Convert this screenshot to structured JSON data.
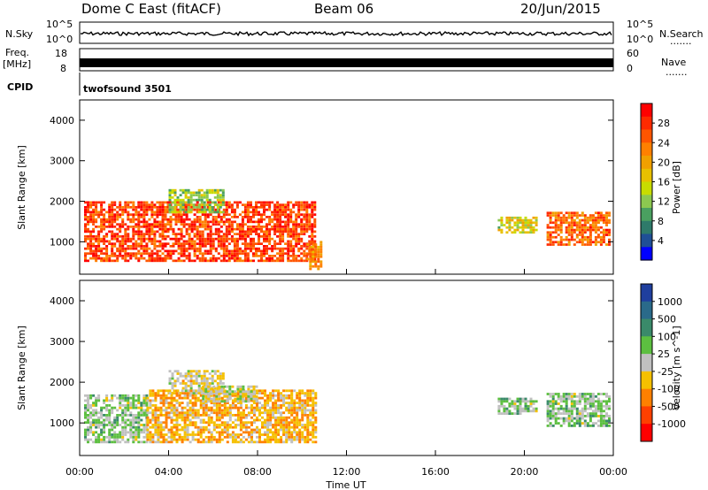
{
  "header": {
    "station": "Dome C East (fitACF)",
    "beam": "Beam 06",
    "date": "20/Jun/2015"
  },
  "status_panels": {
    "nsky_label": "N.Sky",
    "nsky_ticks": [
      "10^5",
      "10^0"
    ],
    "nsearch_label": "N.Search",
    "nsearch_ticks": [
      "10^5",
      "10^0"
    ],
    "freq_label_line1": "Freq.",
    "freq_label_line2": "[MHz]",
    "freq_ticks": [
      "18",
      "8"
    ],
    "nave_label": "Nave",
    "nave_ticks": [
      "60",
      "0"
    ],
    "cpid_label": "CPID",
    "cpid_text": "twofsound 3501",
    "dots": "......."
  },
  "chart_data": [
    {
      "type": "heatmap",
      "name": "power-panel",
      "ylabel": "Slant Range [km]",
      "xlabel": "Time UT",
      "x_ticks": [
        "00:00",
        "04:00",
        "08:00",
        "12:00",
        "16:00",
        "20:00",
        "00:00"
      ],
      "y_ticks": [
        "4000",
        "3000",
        "2000",
        "1000"
      ],
      "ylim": [
        200,
        4500
      ],
      "xlim_hours": [
        0,
        24
      ],
      "colorbar_label": "Power [dB]",
      "colorbar_ticks": [
        "28",
        "24",
        "20",
        "16",
        "12",
        "8",
        "4"
      ],
      "colorbar_colors": [
        "#ff0000",
        "#ff2a00",
        "#ff5500",
        "#ff8000",
        "#f0a000",
        "#e8c000",
        "#c8dc00",
        "#8cc850",
        "#4aa060",
        "#2e7a6a",
        "#1f4f96",
        "#0000ff"
      ],
      "regions": [
        {
          "t0": 0.2,
          "t1": 10.6,
          "r0": 500,
          "r1": 2000,
          "level": 26
        },
        {
          "t0": 10.2,
          "t1": 10.8,
          "r0": 300,
          "r1": 1000,
          "level": 20
        },
        {
          "t0": 4.0,
          "t1": 6.5,
          "r0": 1700,
          "r1": 2300,
          "level": 12
        },
        {
          "t0": 18.8,
          "t1": 20.5,
          "r0": 1200,
          "r1": 1600,
          "level": 14
        },
        {
          "t0": 21.0,
          "t1": 23.8,
          "r0": 900,
          "r1": 1700,
          "level": 24
        }
      ]
    },
    {
      "type": "heatmap",
      "name": "velocity-panel",
      "ylabel": "Slant Range [km]",
      "xlabel": "Time UT",
      "x_ticks": [
        "00:00",
        "04:00",
        "08:00",
        "12:00",
        "16:00",
        "20:00",
        "00:00"
      ],
      "y_ticks": [
        "4000",
        "3000",
        "2000",
        "1000"
      ],
      "ylim": [
        200,
        4500
      ],
      "xlim_hours": [
        0,
        24
      ],
      "colorbar_label": "Velocity [m s^-1]",
      "colorbar_ticks": [
        "1000",
        "500",
        "100",
        "25",
        "-25",
        "-100",
        "-500",
        "-1000"
      ],
      "colorbar_colors": [
        "#1f3f9e",
        "#2a6a8a",
        "#3a8a6a",
        "#5cbf40",
        "#c0c0c0",
        "#f5c000",
        "#ff8000",
        "#ff4000",
        "#ff0000"
      ],
      "regions": [
        {
          "t0": 0.2,
          "t1": 3.0,
          "r0": 500,
          "r1": 1700,
          "level": 150
        },
        {
          "t0": 3.0,
          "t1": 10.6,
          "r0": 500,
          "r1": 1800,
          "level": -300
        },
        {
          "t0": 4.0,
          "t1": 6.5,
          "r0": 1700,
          "r1": 2300,
          "level": -100
        },
        {
          "t0": 5.5,
          "t1": 8.0,
          "r0": 1500,
          "r1": 1900,
          "level": 0
        },
        {
          "t0": 18.8,
          "t1": 20.5,
          "r0": 1200,
          "r1": 1600,
          "level": 150
        },
        {
          "t0": 21.0,
          "t1": 23.8,
          "r0": 900,
          "r1": 1700,
          "level": 150
        }
      ]
    }
  ]
}
